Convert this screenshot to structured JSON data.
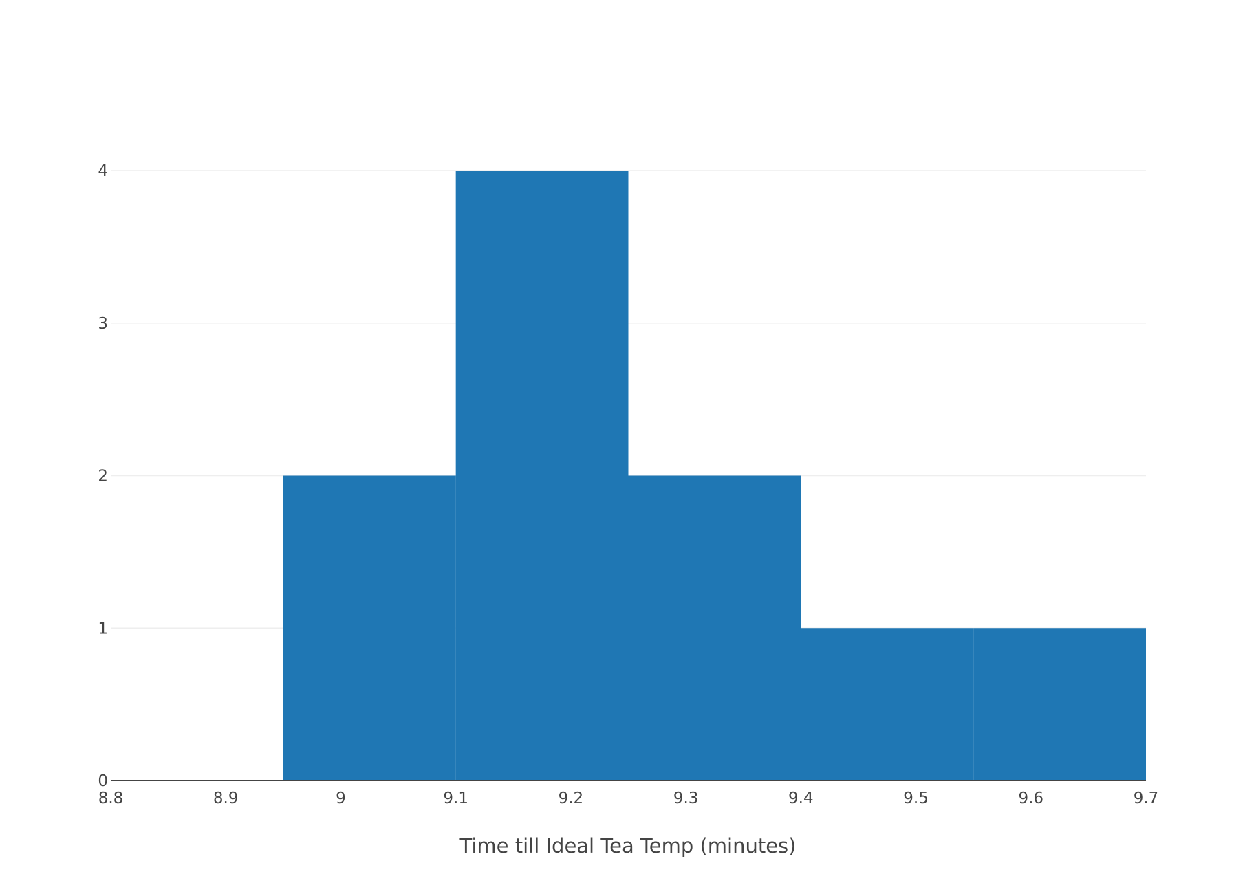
{
  "chart_data": {
    "type": "bar",
    "subtype": "histogram",
    "title": "",
    "xlabel": "Time till Ideal Tea Temp (minutes)",
    "ylabel": "",
    "xlim": [
      8.8,
      9.7
    ],
    "ylim": [
      0,
      4
    ],
    "x_ticks": [
      8.8,
      8.9,
      9.0,
      9.1,
      9.2,
      9.3,
      9.4,
      9.5,
      9.6,
      9.7
    ],
    "x_tick_labels": [
      "8.8",
      "8.9",
      "9",
      "9.1",
      "9.2",
      "9.3",
      "9.4",
      "9.5",
      "9.6",
      "9.7"
    ],
    "y_ticks": [
      0,
      1,
      2,
      3,
      4
    ],
    "y_tick_labels": [
      "0",
      "1",
      "2",
      "3",
      "4"
    ],
    "bins": [
      {
        "start": 8.8,
        "end": 8.95,
        "count": 0
      },
      {
        "start": 8.95,
        "end": 9.1,
        "count": 2
      },
      {
        "start": 9.1,
        "end": 9.25,
        "count": 4
      },
      {
        "start": 9.25,
        "end": 9.4,
        "count": 2
      },
      {
        "start": 9.4,
        "end": 9.55,
        "count": 1
      },
      {
        "start": 9.55,
        "end": 9.7,
        "count": 1
      }
    ],
    "grid": true,
    "legend": "none",
    "bar_color": "#1f77b4"
  }
}
